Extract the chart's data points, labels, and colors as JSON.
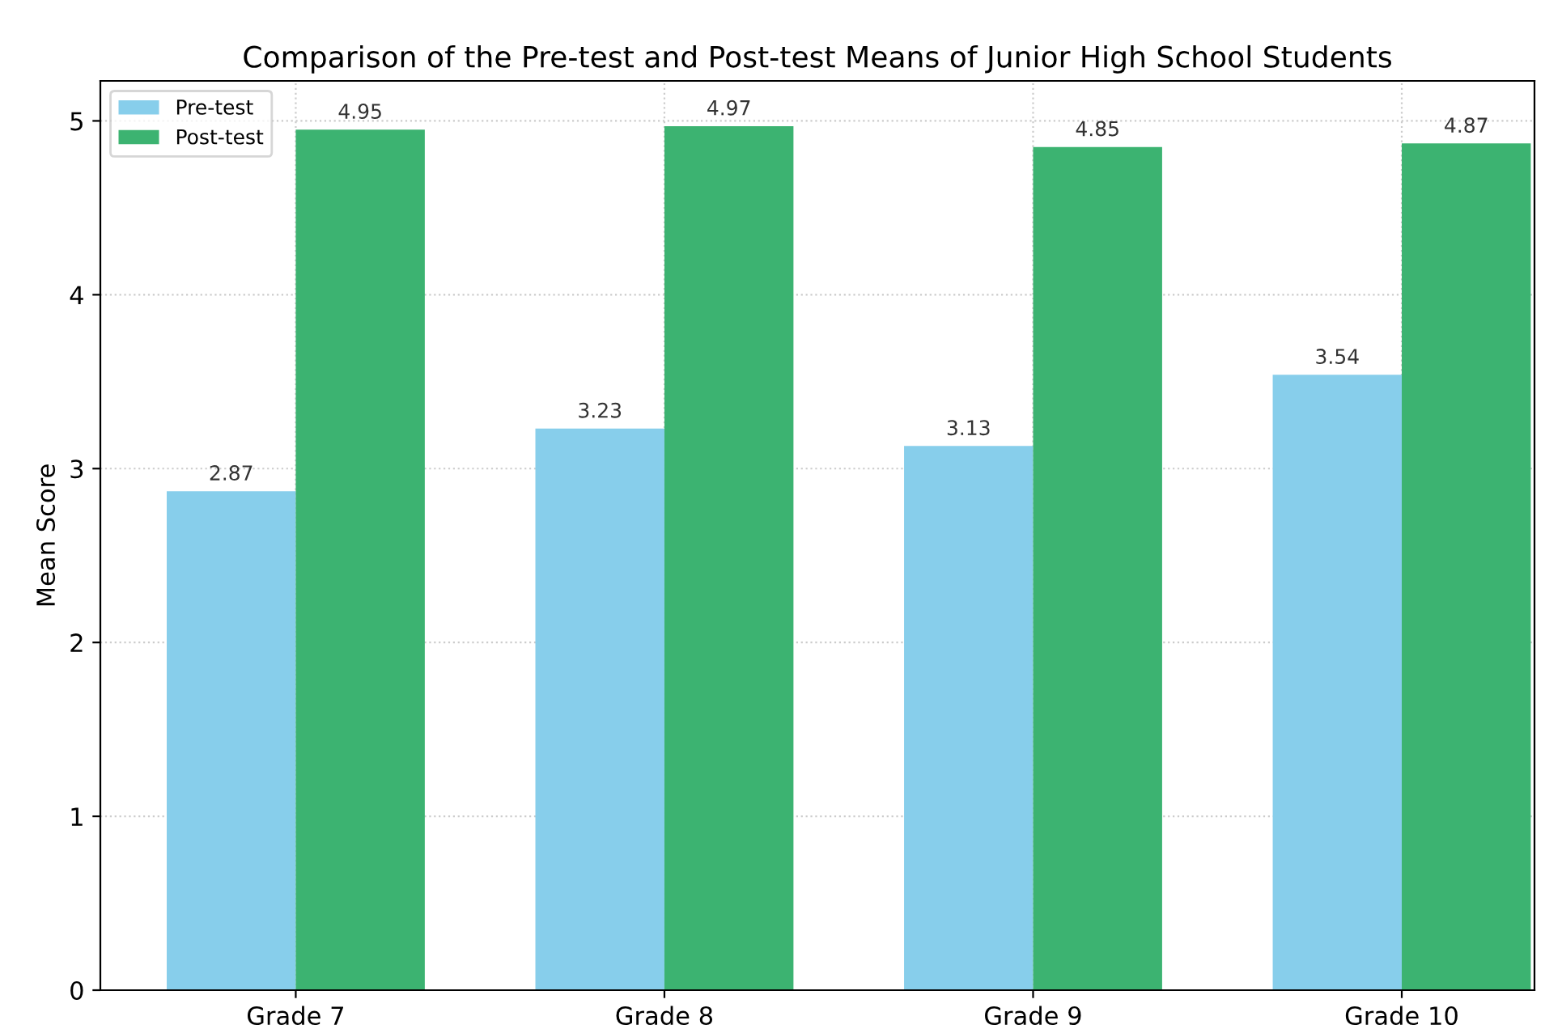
{
  "chart_data": {
    "type": "bar",
    "title": "Comparison of the Pre-test and Post-test Means of Junior High School Students",
    "ylabel": "Mean Score",
    "categories": [
      "Grade 7",
      "Grade 8",
      "Grade 9",
      "Grade 10"
    ],
    "series": [
      {
        "name": "Pre-test",
        "color": "#87ceeb",
        "values": [
          2.87,
          3.23,
          3.13,
          3.54
        ]
      },
      {
        "name": "Post-test",
        "color": "#3cb371",
        "values": [
          4.95,
          4.97,
          4.85,
          4.87
        ]
      }
    ],
    "ylim": [
      0,
      5.23
    ],
    "yticks": [
      0,
      1,
      2,
      3,
      4,
      5
    ],
    "grid": true,
    "legend": "top left",
    "data_labels": true
  }
}
